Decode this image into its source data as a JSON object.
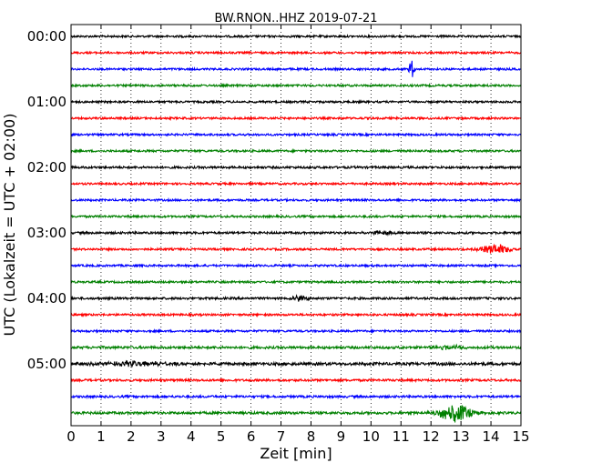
{
  "chart_data": {
    "type": "line",
    "title": "BW.RNON..HHZ 2019-07-21",
    "xlabel": "Zeit  [min]",
    "ylabel": "UTC (Lokalzeit = UTC + 02:00)",
    "xlim": [
      0,
      15
    ],
    "x_ticks": [
      "0",
      "1",
      "2",
      "3",
      "4",
      "5",
      "6",
      "7",
      "8",
      "9",
      "10",
      "11",
      "12",
      "13",
      "14",
      "15"
    ],
    "y_ticks": [
      {
        "label": "00:00",
        "trace_index": 0
      },
      {
        "label": "01:00",
        "trace_index": 4
      },
      {
        "label": "02:00",
        "trace_index": 8
      },
      {
        "label": "03:00",
        "trace_index": 12
      },
      {
        "label": "04:00",
        "trace_index": 16
      },
      {
        "label": "05:00",
        "trace_index": 20
      }
    ],
    "grid_vertical": "dotted",
    "trace_interval_min": 15,
    "trace_color_cycle": [
      "#000000",
      "#ff0000",
      "#0000ff",
      "#008000"
    ],
    "traces": [
      {
        "start": "00:00",
        "noise": 1.0,
        "events": []
      },
      {
        "start": "00:15",
        "noise": 1.0,
        "events": []
      },
      {
        "start": "00:30",
        "noise": 1.0,
        "events": [
          {
            "t": 11.35,
            "amp": 11,
            "dur": 0.06
          }
        ]
      },
      {
        "start": "00:45",
        "noise": 1.0,
        "events": []
      },
      {
        "start": "01:00",
        "noise": 1.0,
        "events": []
      },
      {
        "start": "01:15",
        "noise": 1.0,
        "events": []
      },
      {
        "start": "01:30",
        "noise": 1.0,
        "events": []
      },
      {
        "start": "01:45",
        "noise": 1.0,
        "events": []
      },
      {
        "start": "02:00",
        "noise": 1.1,
        "events": []
      },
      {
        "start": "02:15",
        "noise": 1.0,
        "events": []
      },
      {
        "start": "02:30",
        "noise": 1.0,
        "events": []
      },
      {
        "start": "02:45",
        "noise": 1.0,
        "events": []
      },
      {
        "start": "03:00",
        "noise": 1.1,
        "events": [
          {
            "t": 10.3,
            "amp": 2,
            "dur": 0.3
          }
        ]
      },
      {
        "start": "03:15",
        "noise": 1.0,
        "events": [
          {
            "t": 14.2,
            "amp": 5,
            "dur": 0.45
          }
        ]
      },
      {
        "start": "03:30",
        "noise": 1.0,
        "events": []
      },
      {
        "start": "03:45",
        "noise": 1.0,
        "events": []
      },
      {
        "start": "04:00",
        "noise": 1.1,
        "events": [
          {
            "t": 7.6,
            "amp": 3,
            "dur": 0.2
          }
        ]
      },
      {
        "start": "04:15",
        "noise": 1.0,
        "events": []
      },
      {
        "start": "04:30",
        "noise": 1.0,
        "events": []
      },
      {
        "start": "04:45",
        "noise": 1.2,
        "events": [
          {
            "t": 12.7,
            "amp": 2,
            "dur": 0.4
          }
        ]
      },
      {
        "start": "05:00",
        "noise": 1.4,
        "events": [
          {
            "t": 2.1,
            "amp": 2.5,
            "dur": 0.8
          }
        ]
      },
      {
        "start": "05:15",
        "noise": 1.1,
        "events": []
      },
      {
        "start": "05:30",
        "noise": 1.1,
        "events": []
      },
      {
        "start": "05:45",
        "noise": 1.2,
        "events": [
          {
            "t": 12.8,
            "amp": 10,
            "dur": 0.4
          }
        ]
      }
    ]
  }
}
